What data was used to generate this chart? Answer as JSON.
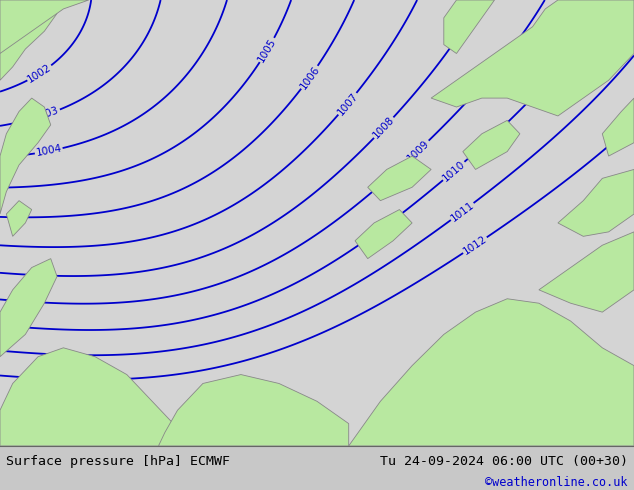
{
  "title_left": "Surface pressure [hPa] ECMWF",
  "title_right": "Tu 24-09-2024 06:00 UTC (00+30)",
  "copyright": "©weatheronline.co.uk",
  "bg_color": "#d4d4d4",
  "land_color": "#b8e8a0",
  "land_edge_color": "#888888",
  "contour_color": "#0000cc",
  "contour_linewidth": 1.3,
  "label_fontsize": 7.5,
  "bottom_bar_color": "#c8c8c8",
  "bottom_text_color": "#000000",
  "copyright_color": "#0000cc",
  "figsize": [
    6.34,
    4.9
  ],
  "dpi": 100
}
